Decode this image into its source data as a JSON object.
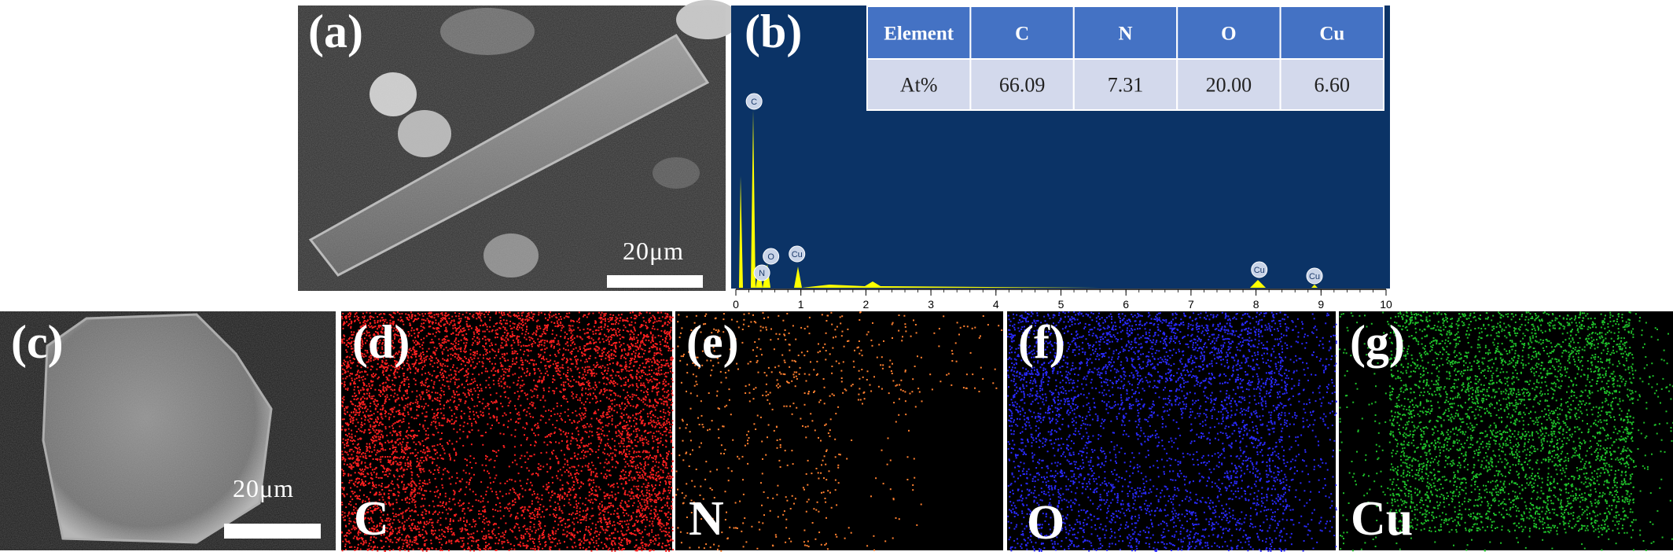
{
  "panel_labels": [
    "(a)",
    "(b)",
    "(c)",
    "(d)",
    "(e)",
    "(f)",
    "(g)"
  ],
  "scale_bars": [
    "20μm",
    "20μm"
  ],
  "table": {
    "header": [
      "Element",
      "C",
      "N",
      "O",
      "Cu"
    ],
    "rows": [
      [
        "At%",
        "66.09",
        "7.31",
        "20.00",
        "6.60"
      ]
    ]
  },
  "spectrum": {
    "xlim": [
      0,
      10
    ],
    "xticks": [
      0,
      1,
      2,
      3,
      4,
      5,
      6,
      7,
      8,
      9,
      10
    ],
    "peak_labels": [
      {
        "label": "C",
        "x": 0.28
      },
      {
        "label": "N",
        "x": 0.4
      },
      {
        "label": "O",
        "x": 0.54
      },
      {
        "label": "Cu",
        "x": 0.94
      },
      {
        "label": "Cu",
        "x": 8.05
      },
      {
        "label": "Cu",
        "x": 8.9
      }
    ]
  },
  "map_labels": [
    "C",
    "N",
    "O",
    "Cu"
  ]
}
